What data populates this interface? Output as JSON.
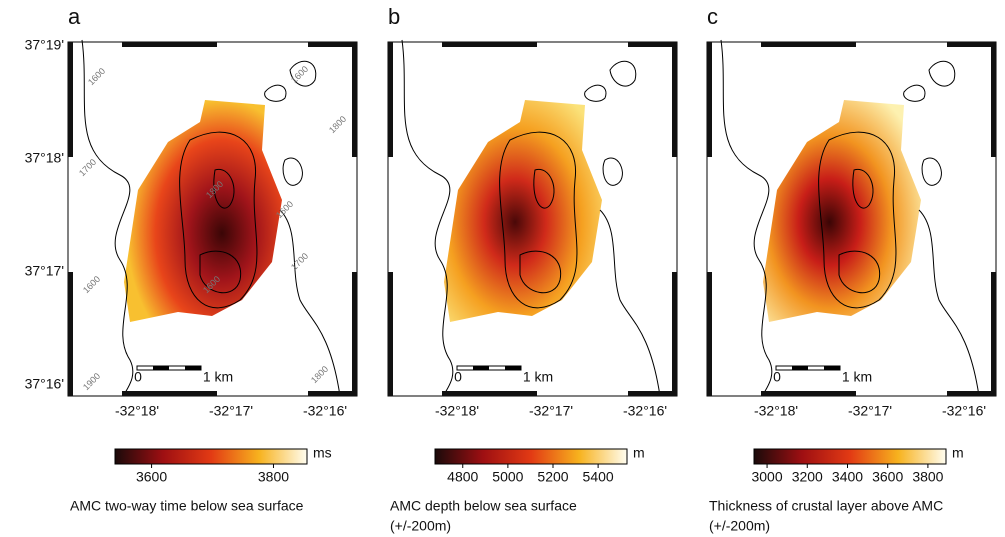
{
  "panels": [
    {
      "label": "a",
      "lat_ticks": [
        "37°19'",
        "37°18'",
        "37°17'",
        "37°16'"
      ],
      "lon_ticks": [
        "-32°18'",
        "-32°17'",
        "-32°16'"
      ],
      "contour_labels": [
        "1600",
        "1600",
        "1800",
        "1700",
        "1800",
        "1600",
        "1700",
        "1600",
        "1600",
        "1900",
        "1800"
      ],
      "scale_bar": [
        "0",
        "1 km"
      ],
      "colorbar": {
        "unit": "ms",
        "lim": [
          3540,
          3855
        ],
        "ticks": [
          3600,
          3800
        ],
        "caption": [
          "AMC two-way time below sea surface"
        ]
      }
    },
    {
      "label": "b",
      "lon_ticks": [
        "-32°18'",
        "-32°17'",
        "-32°16'"
      ],
      "scale_bar": [
        "0",
        "1 km"
      ],
      "colorbar": {
        "unit": "m",
        "lim": [
          4677,
          5528
        ],
        "ticks": [
          4800,
          5000,
          5200,
          5400
        ],
        "caption": [
          "AMC depth below sea surface",
          "(+/-200m)"
        ]
      }
    },
    {
      "label": "c",
      "lon_ticks": [
        "-32°18'",
        "-32°17'",
        "-32°16'"
      ],
      "scale_bar": [
        "0",
        "1 km"
      ],
      "colorbar": {
        "unit": "m",
        "lim": [
          2935,
          3890
        ],
        "ticks": [
          3000,
          3200,
          3400,
          3600,
          3800
        ],
        "caption": [
          "Thickness of crustal layer above AMC",
          "(+/-200m)"
        ]
      }
    }
  ]
}
